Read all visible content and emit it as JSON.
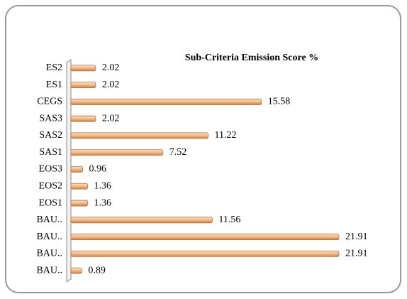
{
  "chart_data": {
    "type": "bar",
    "orientation": "horizontal",
    "title": "Sub-Criteria Emission Score %",
    "categories": [
      "ES2",
      "ES1",
      "CEGS",
      "SAS3",
      "SAS2",
      "SAS1",
      "EOS3",
      "EOS2",
      "EOS1",
      "BAU..",
      "BAU..",
      "BAU..",
      "BAU.."
    ],
    "values": [
      2.02,
      2.02,
      15.58,
      2.02,
      11.22,
      7.52,
      0.96,
      1.36,
      1.36,
      11.56,
      21.91,
      21.91,
      0.89
    ],
    "color": "#f4b982",
    "xlim": [
      0,
      22
    ]
  }
}
